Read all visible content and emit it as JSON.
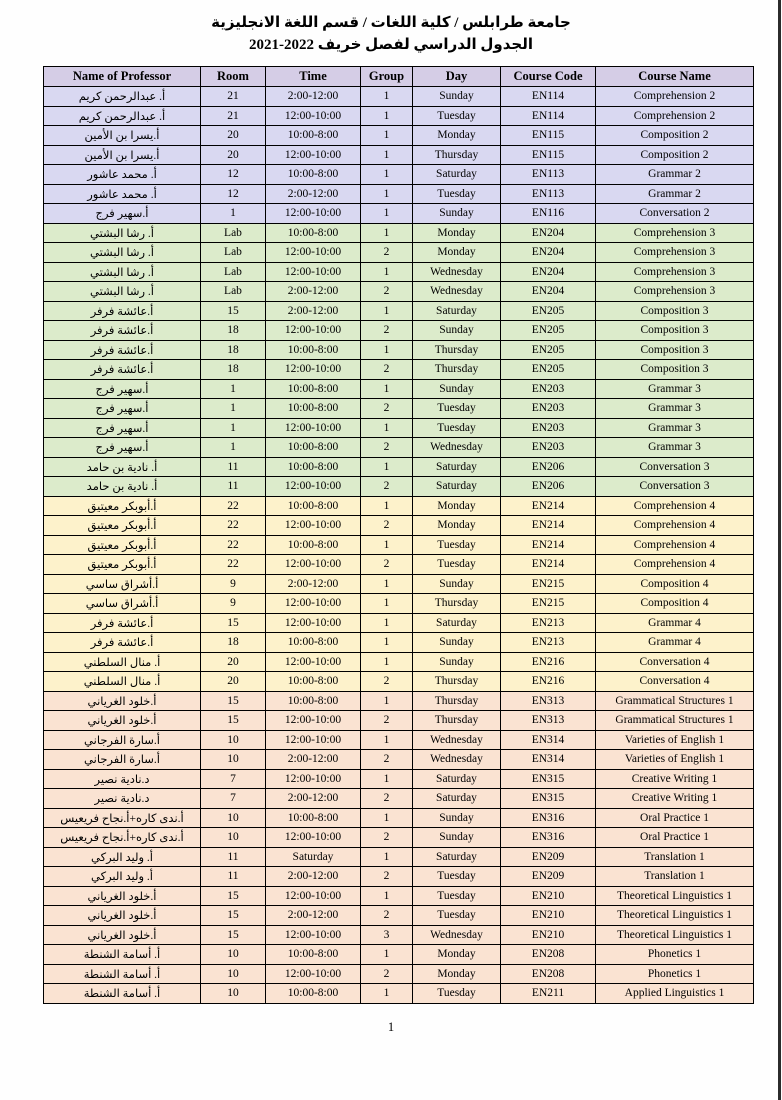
{
  "page": {
    "title_line1": "جامعة طرابلس / كلية اللغات / قسم اللغة الانجليزية",
    "title_line2": "الجدول الدراسي لفصل خريف 2022-2021",
    "page_number": "1"
  },
  "colors": {
    "header_bg": "#d5cde6",
    "band_year1": "#d9d8f1",
    "band_year2": "#dcebcb",
    "band_year3": "#fdf2cb",
    "band_year4": "#fae3d2",
    "border": "#000000"
  },
  "table": {
    "headers": [
      "Name of Professor",
      "Room",
      "Time",
      "Group",
      "Day",
      "Course Code",
      "Course Name"
    ],
    "band_colors": {
      "1": "#d9d8f1",
      "2": "#dcebcb",
      "3": "#fdf2cb",
      "4": "#fae3d2"
    },
    "rows": [
      {
        "professor": "أ. عبدالرحمن كريم",
        "room": "21",
        "time": "2:00-12:00",
        "group": "1",
        "day": "Sunday",
        "code": "EN114",
        "course": "Comprehension 2",
        "band": "1"
      },
      {
        "professor": "أ. عبدالرحمن كريم",
        "room": "21",
        "time": "12:00-10:00",
        "group": "1",
        "day": "Tuesday",
        "code": "EN114",
        "course": "Comprehension 2",
        "band": "1"
      },
      {
        "professor": "أ.يسرا بن الأمين",
        "room": "20",
        "time": "10:00-8:00",
        "group": "1",
        "day": "Monday",
        "code": "EN115",
        "course": "Composition 2",
        "band": "1"
      },
      {
        "professor": "أ.يسرا بن الأمين",
        "room": "20",
        "time": "12:00-10:00",
        "group": "1",
        "day": "Thursday",
        "code": "EN115",
        "course": "Composition 2",
        "band": "1"
      },
      {
        "professor": "أ. محمد عاشور",
        "room": "12",
        "time": "10:00-8:00",
        "group": "1",
        "day": "Saturday",
        "code": "EN113",
        "course": "Grammar 2",
        "band": "1"
      },
      {
        "professor": "أ. محمد عاشور",
        "room": "12",
        "time": "2:00-12:00",
        "group": "1",
        "day": "Tuesday",
        "code": "EN113",
        "course": "Grammar 2",
        "band": "1"
      },
      {
        "professor": "أ.سهير فرج",
        "room": "1",
        "time": "12:00-10:00",
        "group": "1",
        "day": "Sunday",
        "code": "EN116",
        "course": "Conversation 2",
        "band": "1"
      },
      {
        "professor": "أ. رشا البشتي",
        "room": "Lab",
        "time": "10:00-8:00",
        "group": "1",
        "day": "Monday",
        "code": "EN204",
        "course": "Comprehension 3",
        "band": "2"
      },
      {
        "professor": "أ. رشا البشتي",
        "room": "Lab",
        "time": "12:00-10:00",
        "group": "2",
        "day": "Monday",
        "code": "EN204",
        "course": "Comprehension 3",
        "band": "2"
      },
      {
        "professor": "أ. رشا البشتي",
        "room": "Lab",
        "time": "12:00-10:00",
        "group": "1",
        "day": "Wednesday",
        "code": "EN204",
        "course": "Comprehension 3",
        "band": "2"
      },
      {
        "professor": "أ. رشا البشتي",
        "room": "Lab",
        "time": "2:00-12:00",
        "group": "2",
        "day": "Wednesday",
        "code": "EN204",
        "course": "Comprehension 3",
        "band": "2"
      },
      {
        "professor": "أ.عائشة فرفر",
        "room": "15",
        "time": "2:00-12:00",
        "group": "1",
        "day": "Saturday",
        "code": "EN205",
        "course": "Composition 3",
        "band": "2"
      },
      {
        "professor": "أ.عائشة فرفر",
        "room": "18",
        "time": "12:00-10:00",
        "group": "2",
        "day": "Sunday",
        "code": "EN205",
        "course": "Composition 3",
        "band": "2"
      },
      {
        "professor": "أ.عائشة فرفر",
        "room": "18",
        "time": "10:00-8:00",
        "group": "1",
        "day": "Thursday",
        "code": "EN205",
        "course": "Composition 3",
        "band": "2"
      },
      {
        "professor": "أ.عائشة فرفر",
        "room": "18",
        "time": "12:00-10:00",
        "group": "2",
        "day": "Thursday",
        "code": "EN205",
        "course": "Composition 3",
        "band": "2"
      },
      {
        "professor": "أ.سهير فرج",
        "room": "1",
        "time": "10:00-8:00",
        "group": "1",
        "day": "Sunday",
        "code": "EN203",
        "course": "Grammar 3",
        "band": "2"
      },
      {
        "professor": "أ.سهير فرج",
        "room": "1",
        "time": "10:00-8:00",
        "group": "2",
        "day": "Tuesday",
        "code": "EN203",
        "course": "Grammar 3",
        "band": "2"
      },
      {
        "professor": "أ.سهير فرج",
        "room": "1",
        "time": "12:00-10:00",
        "group": "1",
        "day": "Tuesday",
        "code": "EN203",
        "course": "Grammar 3",
        "band": "2"
      },
      {
        "professor": "أ.سهير فرج",
        "room": "1",
        "time": "10:00-8:00",
        "group": "2",
        "day": "Wednesday",
        "code": "EN203",
        "course": "Grammar 3",
        "band": "2"
      },
      {
        "professor": "أ. نادية بن حامد",
        "room": "11",
        "time": "10:00-8:00",
        "group": "1",
        "day": "Saturday",
        "code": "EN206",
        "course": "Conversation 3",
        "band": "2"
      },
      {
        "professor": "أ. نادية بن حامد",
        "room": "11",
        "time": "12:00-10:00",
        "group": "2",
        "day": "Saturday",
        "code": "EN206",
        "course": "Conversation 3",
        "band": "2"
      },
      {
        "professor": "أ.أبوبكر معيتيق",
        "room": "22",
        "time": "10:00-8:00",
        "group": "1",
        "day": "Monday",
        "code": "EN214",
        "course": "Comprehension 4",
        "band": "3"
      },
      {
        "professor": "أ.أبوبكر معيتيق",
        "room": "22",
        "time": "12:00-10:00",
        "group": "2",
        "day": "Monday",
        "code": "EN214",
        "course": "Comprehension 4",
        "band": "3"
      },
      {
        "professor": "أ.أبوبكر معيتيق",
        "room": "22",
        "time": "10:00-8:00",
        "group": "1",
        "day": "Tuesday",
        "code": "EN214",
        "course": "Comprehension 4",
        "band": "3"
      },
      {
        "professor": "أ.أبوبكر معيتيق",
        "room": "22",
        "time": "12:00-10:00",
        "group": "2",
        "day": "Tuesday",
        "code": "EN214",
        "course": "Comprehension 4",
        "band": "3"
      },
      {
        "professor": "أ.أشراق ساسي",
        "room": "9",
        "time": "2:00-12:00",
        "group": "1",
        "day": "Sunday",
        "code": "EN215",
        "course": "Composition 4",
        "band": "3"
      },
      {
        "professor": "أ.أشراق ساسي",
        "room": "9",
        "time": "12:00-10:00",
        "group": "1",
        "day": "Thursday",
        "code": "EN215",
        "course": "Composition 4",
        "band": "3"
      },
      {
        "professor": "أ.عائشة فرفر",
        "room": "15",
        "time": "12:00-10:00",
        "group": "1",
        "day": "Saturday",
        "code": "EN213",
        "course": "Grammar 4",
        "band": "3"
      },
      {
        "professor": "أ.عائشة فرفر",
        "room": "18",
        "time": "10:00-8:00",
        "group": "1",
        "day": "Sunday",
        "code": "EN213",
        "course": "Grammar 4",
        "band": "3"
      },
      {
        "professor": "أ. منال السلطني",
        "room": "20",
        "time": "12:00-10:00",
        "group": "1",
        "day": "Sunday",
        "code": "EN216",
        "course": "Conversation 4",
        "band": "3"
      },
      {
        "professor": "أ. منال السلطني",
        "room": "20",
        "time": "10:00-8:00",
        "group": "2",
        "day": "Thursday",
        "code": "EN216",
        "course": "Conversation 4",
        "band": "3"
      },
      {
        "professor": "أ.خلود الغرياني",
        "room": "15",
        "time": "10:00-8:00",
        "group": "1",
        "day": "Thursday",
        "code": "EN313",
        "course": "Grammatical Structures 1",
        "band": "4"
      },
      {
        "professor": "أ.خلود الغرياني",
        "room": "15",
        "time": "12:00-10:00",
        "group": "2",
        "day": "Thursday",
        "code": "EN313",
        "course": "Grammatical Structures 1",
        "band": "4"
      },
      {
        "professor": "أ.سارة الفرجاني",
        "room": "10",
        "time": "12:00-10:00",
        "group": "1",
        "day": "Wednesday",
        "code": "EN314",
        "course": "Varieties of English 1",
        "band": "4"
      },
      {
        "professor": "أ.سارة الفرجاني",
        "room": "10",
        "time": "2:00-12:00",
        "group": "2",
        "day": "Wednesday",
        "code": "EN314",
        "course": "Varieties of English 1",
        "band": "4"
      },
      {
        "professor": "د.نادية نصير",
        "room": "7",
        "time": "12:00-10:00",
        "group": "1",
        "day": "Saturday",
        "code": "EN315",
        "course": "Creative Writing 1",
        "band": "4"
      },
      {
        "professor": "د.نادية نصير",
        "room": "7",
        "time": "2:00-12:00",
        "group": "2",
        "day": "Saturday",
        "code": "EN315",
        "course": "Creative Writing 1",
        "band": "4"
      },
      {
        "professor": "أ.ندى كاره+أ.نجاح فريعيس",
        "room": "10",
        "time": "10:00-8:00",
        "group": "1",
        "day": "Sunday",
        "code": "EN316",
        "course": "Oral Practice 1",
        "band": "4"
      },
      {
        "professor": "أ.ندى كاره+أ.نجاح فريعيس",
        "room": "10",
        "time": "12:00-10:00",
        "group": "2",
        "day": "Sunday",
        "code": "EN316",
        "course": "Oral Practice 1",
        "band": "4"
      },
      {
        "professor": "أ. وليد البركي",
        "room": "11",
        "time": "Saturday",
        "group": "1",
        "day": "Saturday",
        "code": "EN209",
        "course": "Translation 1",
        "band": "4"
      },
      {
        "professor": "أ. وليد البركي",
        "room": "11",
        "time": "2:00-12:00",
        "group": "2",
        "day": "Tuesday",
        "code": "EN209",
        "course": "Translation 1",
        "band": "4"
      },
      {
        "professor": "أ.خلود الغرياني",
        "room": "15",
        "time": "12:00-10:00",
        "group": "1",
        "day": "Tuesday",
        "code": "EN210",
        "course": "Theoretical Linguistics 1",
        "band": "4"
      },
      {
        "professor": "أ.خلود الغرياني",
        "room": "15",
        "time": "2:00-12:00",
        "group": "2",
        "day": "Tuesday",
        "code": "EN210",
        "course": "Theoretical Linguistics 1",
        "band": "4"
      },
      {
        "professor": "أ.خلود الغرياني",
        "room": "15",
        "time": "12:00-10:00",
        "group": "3",
        "day": "Wednesday",
        "code": "EN210",
        "course": "Theoretical Linguistics 1",
        "band": "4"
      },
      {
        "professor": "أ. أسامة الشنطة",
        "room": "10",
        "time": "10:00-8:00",
        "group": "1",
        "day": "Monday",
        "code": "EN208",
        "course": "Phonetics 1",
        "band": "4"
      },
      {
        "professor": "أ. أسامة الشنطة",
        "room": "10",
        "time": "12:00-10:00",
        "group": "2",
        "day": "Monday",
        "code": "EN208",
        "course": "Phonetics 1",
        "band": "4"
      },
      {
        "professor": "أ. أسامة الشنطة",
        "room": "10",
        "time": "10:00-8:00",
        "group": "1",
        "day": "Tuesday",
        "code": "EN211",
        "course": "Applied Linguistics 1",
        "band": "4"
      }
    ]
  }
}
